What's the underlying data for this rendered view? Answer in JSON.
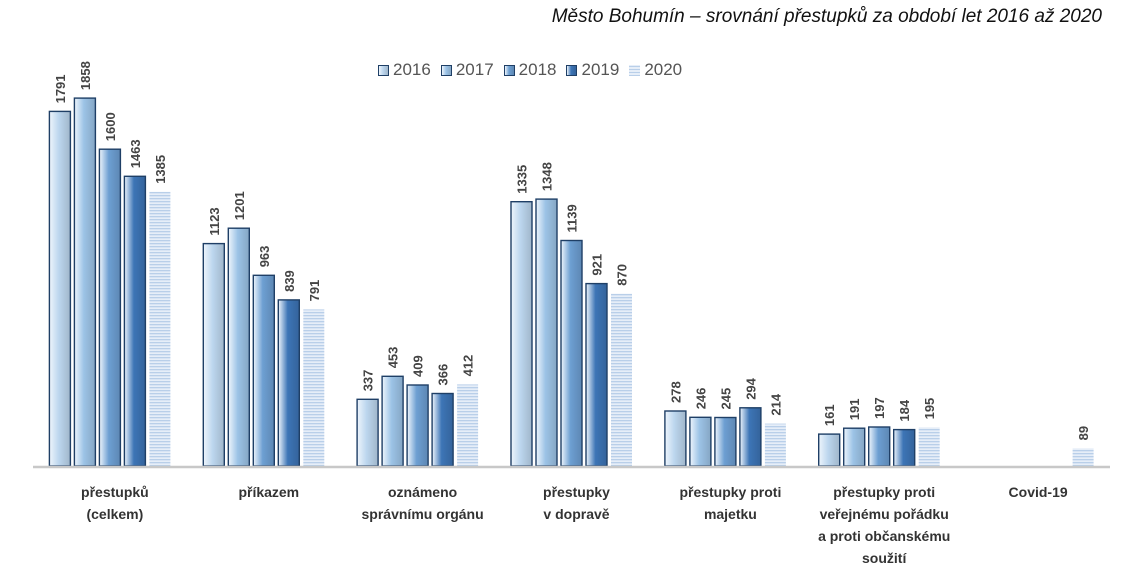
{
  "chart_data": {
    "type": "bar",
    "title": "Město Bohumín – srovnání přestupků za období let 2016 až 2020",
    "categories": [
      [
        "přestupků",
        "(celkem)"
      ],
      [
        "příkazem"
      ],
      [
        "oznámeno",
        "správnímu orgánu"
      ],
      [
        "přestupky",
        "v dopravě"
      ],
      [
        "přestupky proti",
        "majetku"
      ],
      [
        "přestupky proti",
        "veřejnému pořádku",
        "a proti občanskému",
        "soužití"
      ],
      [
        "Covid-19"
      ]
    ],
    "series": [
      {
        "name": "2016",
        "values": [
          1791,
          1123,
          337,
          1335,
          278,
          161,
          null
        ]
      },
      {
        "name": "2017",
        "values": [
          1858,
          1201,
          453,
          1348,
          246,
          191,
          null
        ]
      },
      {
        "name": "2018",
        "values": [
          1600,
          963,
          409,
          1139,
          245,
          197,
          null
        ]
      },
      {
        "name": "2019",
        "values": [
          1463,
          839,
          366,
          921,
          294,
          184,
          null
        ]
      },
      {
        "name": "2020",
        "values": [
          1385,
          791,
          412,
          870,
          214,
          195,
          89
        ]
      }
    ],
    "series_colors": [
      "#bcd6ee",
      "#9cc3e6",
      "#6d9fd2",
      "#3d75b6",
      "#cfdff1"
    ],
    "ylim": [
      0,
      2000
    ],
    "grid": false,
    "legend_position": "top-center",
    "data_labels": true
  }
}
